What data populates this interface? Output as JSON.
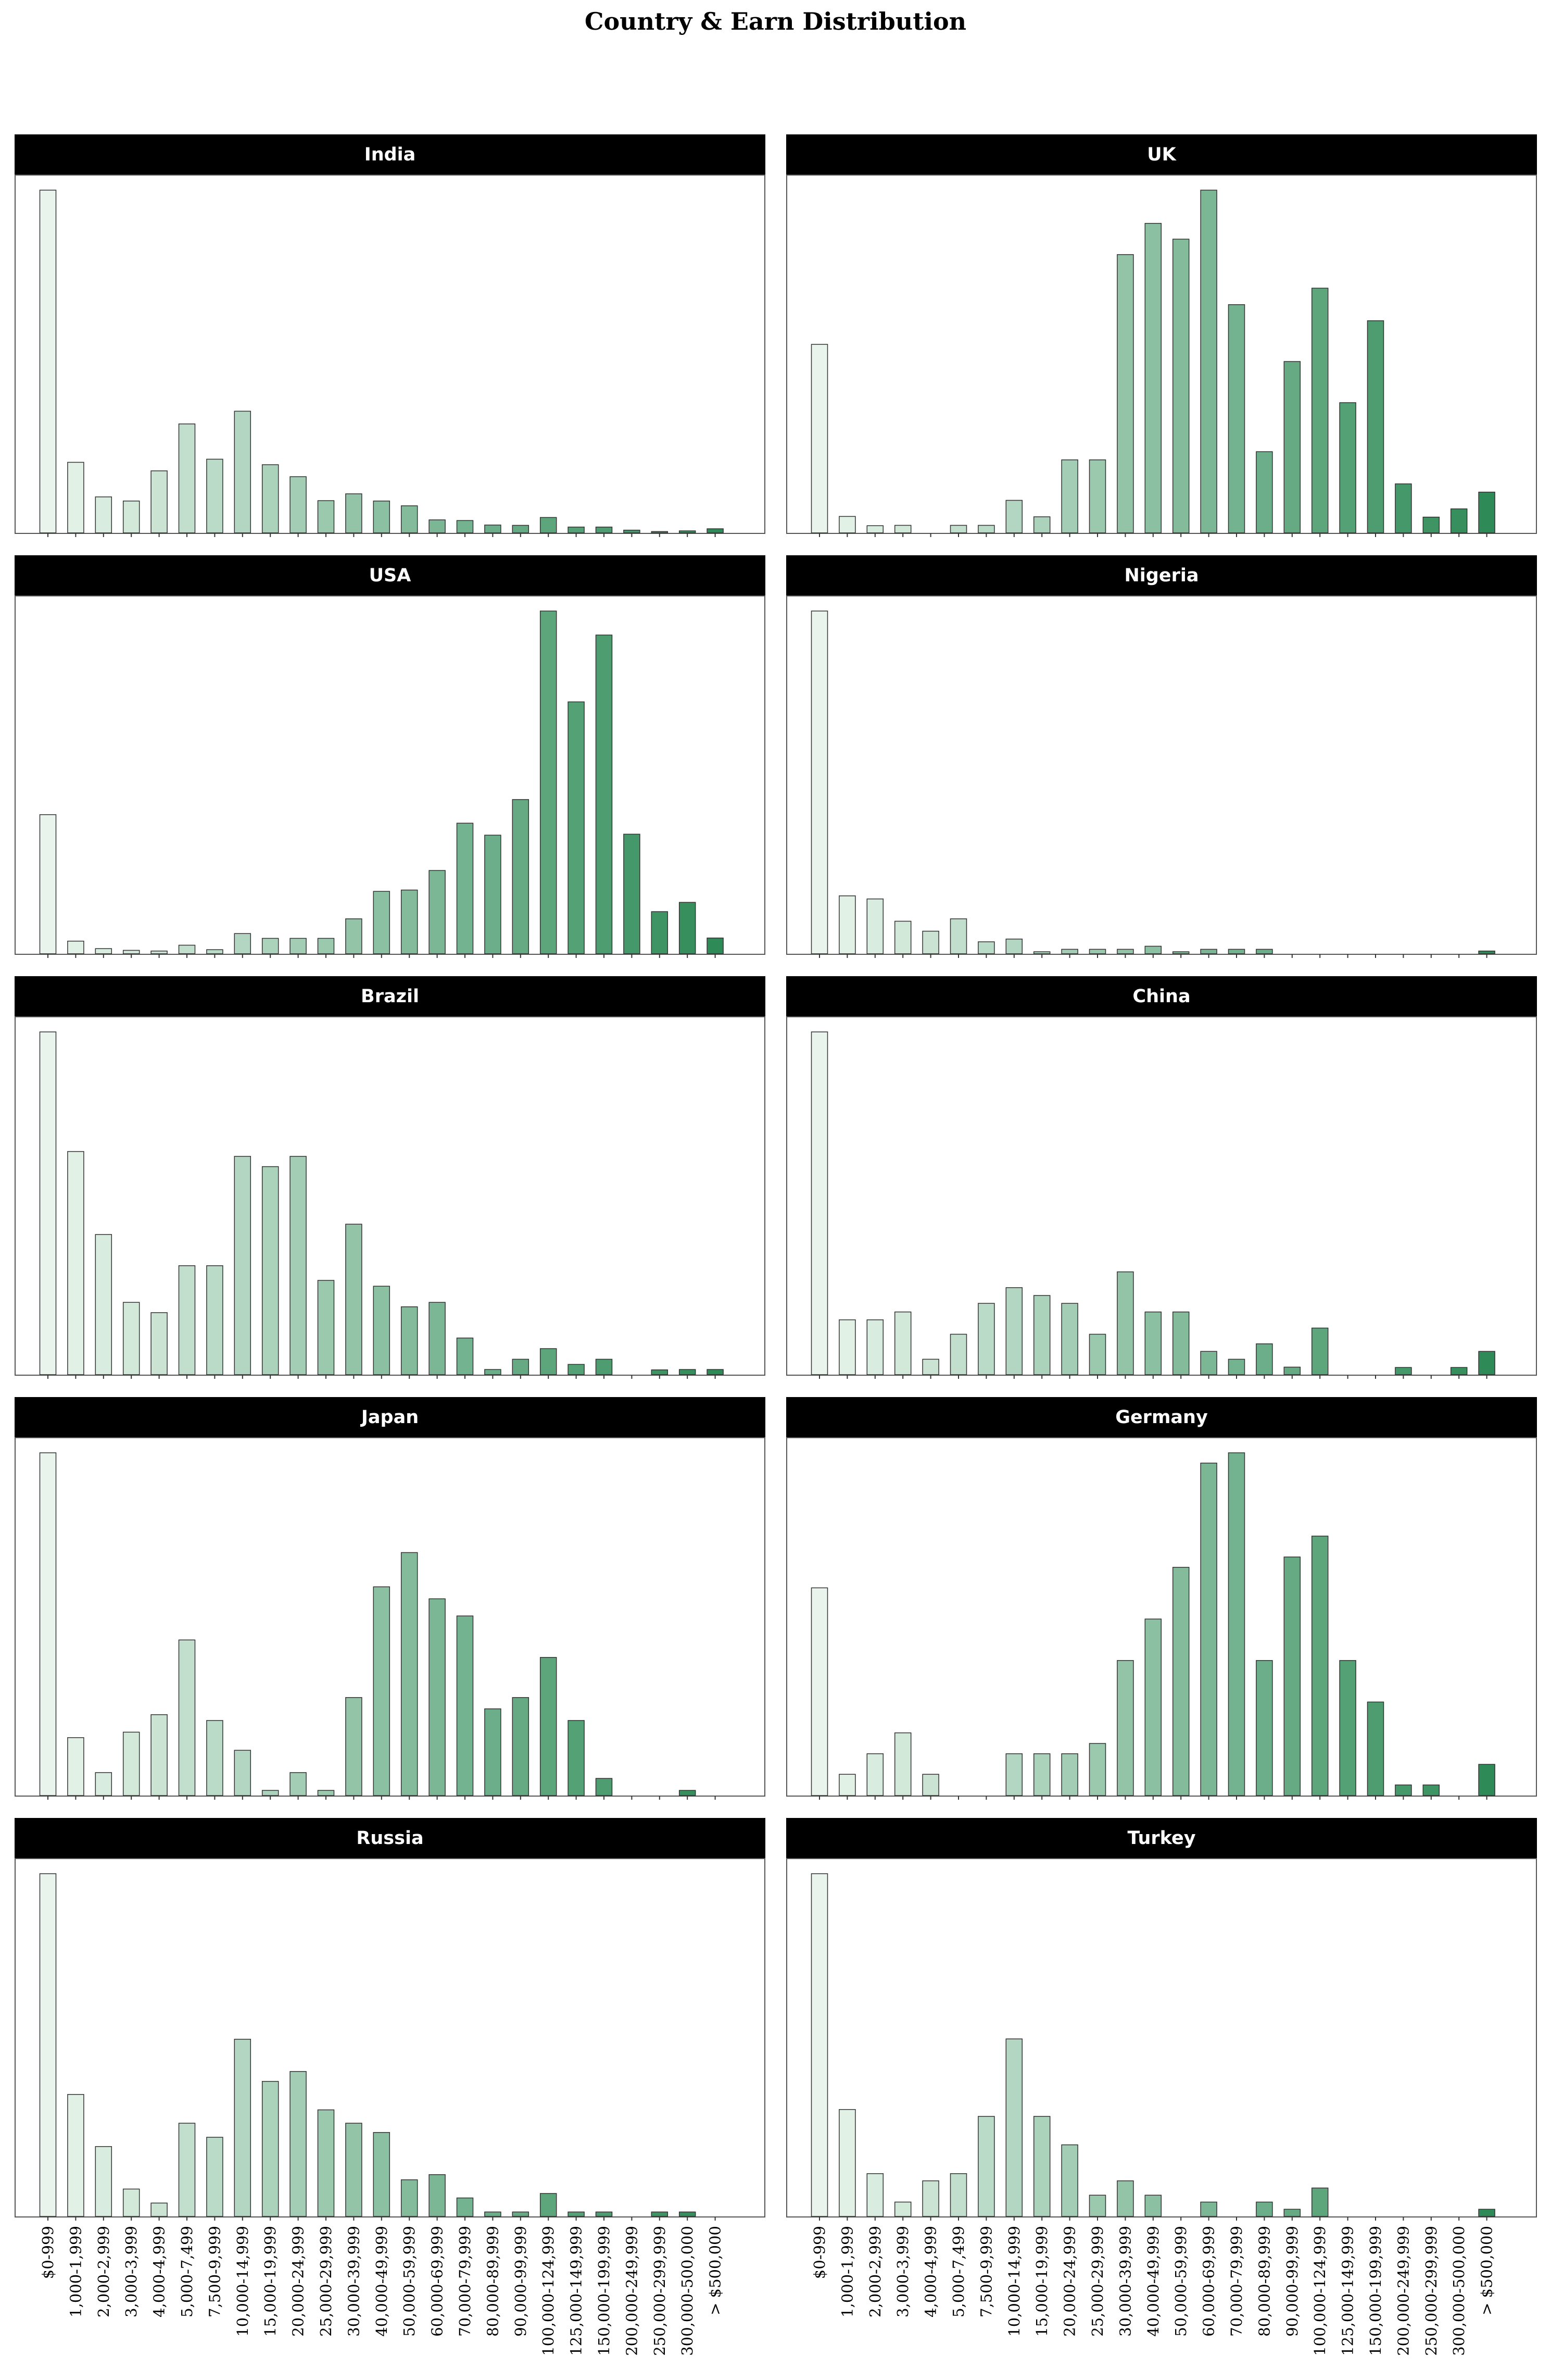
{
  "title": "Country & Earn Distribution",
  "categories": [
    "$0-999",
    "1,000-1,999",
    "2,000-2,999",
    "3,000-3,999",
    "4,000-4,999",
    "5,000-7,499",
    "7,500-9,999",
    "10,000-14,999",
    "15,000-19,999",
    "20,000-24,999",
    "25,000-29,999",
    "30,000-39,999",
    "40,000-49,999",
    "50,000-59,999",
    "60,000-69,999",
    "70,000-79,999",
    "80,000-89,999",
    "90,000-99,999",
    "100,000-124,999",
    "125,000-149,999",
    "150,000-199,999",
    "200,000-249,999",
    "250,000-299,999",
    "300,000-500,000",
    "> $500,000"
  ],
  "colors": {
    "bar_low": "#e9f5ec",
    "bar_high": "#2e8b57",
    "header_bg": "#000000",
    "header_text": "#ffffff"
  },
  "chart_data": [
    {
      "type": "bar",
      "title": "India",
      "values": [
        100,
        20.6,
        10.5,
        9.3,
        18.1,
        31.8,
        21.5,
        35.5,
        19.9,
        16.4,
        9.4,
        11.4,
        9.3,
        7.9,
        3.8,
        3.6,
        2.3,
        2.2,
        4.5,
        1.7,
        1.7,
        0.8,
        0.4,
        0.6,
        1.2
      ]
    },
    {
      "type": "bar",
      "title": "UK",
      "values": [
        55,
        4.8,
        2.1,
        2.2,
        0,
        2.2,
        2.2,
        9.5,
        4.7,
        21.3,
        21.3,
        81.2,
        90.3,
        85.7,
        100,
        66.6,
        23.7,
        50,
        71.4,
        38,
        61.9,
        14.3,
        4.6,
        7,
        11.9
      ]
    },
    {
      "type": "bar",
      "title": "USA",
      "values": [
        40.6,
        3.7,
        1.5,
        1,
        0.8,
        2.5,
        1.2,
        5.9,
        4.5,
        4.5,
        4.5,
        10.2,
        18.2,
        18.6,
        24.3,
        38.1,
        34.6,
        45,
        100,
        73.5,
        93,
        34.9,
        12.3,
        15,
        4.6
      ]
    },
    {
      "type": "bar",
      "title": "Nigeria",
      "values": [
        100,
        16.9,
        16,
        9.5,
        6.6,
        10.2,
        3.5,
        4.3,
        0.6,
        1.3,
        1.3,
        1.3,
        2.2,
        0.6,
        1.3,
        1.3,
        1.3,
        0,
        0,
        0,
        0,
        0,
        0,
        0,
        0.8
      ]
    },
    {
      "type": "bar",
      "title": "Brazil",
      "values": [
        100,
        65.1,
        40.9,
        21.1,
        18.1,
        31.8,
        31.8,
        63.7,
        60.7,
        63.7,
        27.5,
        43.9,
        25.8,
        19.8,
        21.1,
        10.7,
        1.5,
        4.5,
        7.6,
        3,
        4.5,
        0,
        1.4,
        1.5,
        1.5
      ]
    },
    {
      "type": "bar",
      "title": "China",
      "values": [
        100,
        16,
        16,
        18.3,
        4.5,
        11.8,
        20.8,
        25.4,
        23.1,
        20.8,
        11.8,
        30,
        18.3,
        18.3,
        6.8,
        4.5,
        9,
        2.2,
        13.6,
        0,
        0,
        2.1,
        0,
        2.1,
        6.8
      ]
    },
    {
      "type": "bar",
      "title": "Japan",
      "values": [
        100,
        16.9,
        6.7,
        18.5,
        23.6,
        45.4,
        21.9,
        13.2,
        1.5,
        6.7,
        1.5,
        28.6,
        60.9,
        70.9,
        57.4,
        52.4,
        25.3,
        28.6,
        40.3,
        21.9,
        5,
        0,
        0,
        1.5,
        0
      ]
    },
    {
      "type": "bar",
      "title": "Germany",
      "values": [
        60.6,
        6.2,
        12.2,
        18.3,
        6.2,
        0,
        0,
        12.2,
        12.2,
        12.2,
        15.2,
        39.4,
        51.5,
        66.6,
        97,
        100,
        39.4,
        69.6,
        75.7,
        39.4,
        27.3,
        3.1,
        3.1,
        0,
        9.1
      ]
    },
    {
      "type": "bar",
      "title": "Russia",
      "values": [
        100,
        35.6,
        20.4,
        8,
        3.9,
        27.2,
        23.1,
        51.7,
        39.4,
        42.3,
        31.1,
        27.2,
        24.5,
        10.7,
        12.2,
        5.4,
        1.3,
        1.3,
        6.7,
        1.3,
        1.3,
        0,
        1.3,
        1.3,
        0
      ]
    },
    {
      "type": "bar",
      "title": "Turkey",
      "values": [
        100,
        31.2,
        12.5,
        4.2,
        10.4,
        12.5,
        29.2,
        51.8,
        29.2,
        20.9,
        6.2,
        10.4,
        6.2,
        0,
        4.2,
        0,
        4.2,
        2.1,
        8.3,
        0,
        0,
        0,
        0,
        0,
        2.1
      ]
    }
  ]
}
